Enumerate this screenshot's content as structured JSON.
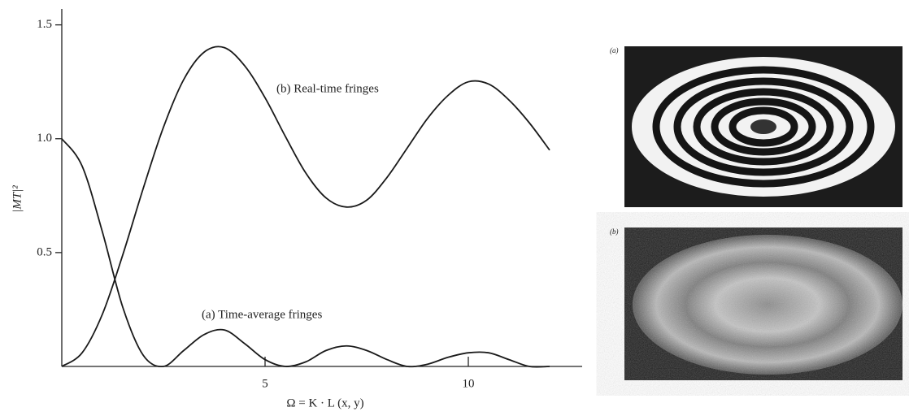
{
  "chart_data": {
    "type": "line",
    "x": [
      0,
      0.5,
      1,
      1.5,
      2,
      2.5,
      3,
      3.5,
      4,
      4.5,
      5,
      5.5,
      6,
      6.5,
      7,
      7.5,
      8,
      8.5,
      9,
      9.5,
      10,
      10.5,
      11,
      11.5,
      12
    ],
    "series": [
      {
        "name": "(b) Real-time fringes",
        "color": "#1a1a1a",
        "values": [
          0,
          0.06,
          0.23,
          0.49,
          0.78,
          1.05,
          1.26,
          1.38,
          1.4,
          1.32,
          1.18,
          1.01,
          0.85,
          0.74,
          0.7,
          0.73,
          0.83,
          0.96,
          1.09,
          1.19,
          1.25,
          1.24,
          1.17,
          1.07,
          0.95
        ]
      },
      {
        "name": "(a) Time-average fringes",
        "color": "#1a1a1a",
        "values": [
          1,
          0.88,
          0.59,
          0.26,
          0.05,
          0.0,
          0.07,
          0.14,
          0.16,
          0.1,
          0.03,
          0.0,
          0.02,
          0.07,
          0.09,
          0.07,
          0.03,
          0.0,
          0.01,
          0.04,
          0.06,
          0.06,
          0.03,
          0.0,
          0.0
        ]
      }
    ],
    "xlabel": "Ω = K · L (x, y)",
    "ylabel": "|MT|²",
    "xlim": [
      0,
      12.8
    ],
    "ylim": [
      0,
      1.57
    ],
    "xticks": [
      5,
      10
    ],
    "yticks": [
      0.5,
      {
        "value": 1,
        "label": "1.0"
      },
      1.5
    ]
  },
  "panels": [
    "(a)",
    "(b)"
  ]
}
